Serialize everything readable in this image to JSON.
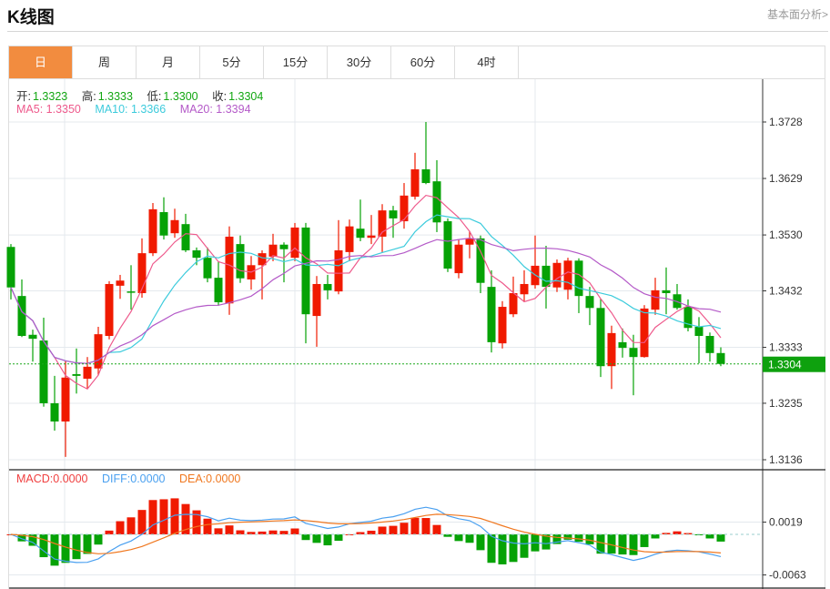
{
  "header": {
    "title": "K线图",
    "more_link": "基本面分析>"
  },
  "tabs": [
    {
      "label": "日",
      "active": true
    },
    {
      "label": "周"
    },
    {
      "label": "月"
    },
    {
      "label": "5分"
    },
    {
      "label": "15分"
    },
    {
      "label": "30分"
    },
    {
      "label": "60分"
    },
    {
      "label": "4时"
    }
  ],
  "ohlc_info": {
    "open_label": "开:",
    "open": "1.3323",
    "high_label": "高:",
    "high": "1.3333",
    "low_label": "低:",
    "low": "1.3300",
    "close_label": "收:",
    "close": "1.3304"
  },
  "ma_info": {
    "ma5": "MA5: 1.3350",
    "ma10": "MA10: 1.3366",
    "ma20": "MA20: 1.3394"
  },
  "macd_info": {
    "macd": "MACD:0.0000",
    "diff": "DIFF:0.0000",
    "dea": "DEA:0.0000"
  },
  "colors": {
    "up": "#f01a00",
    "down": "#06a206",
    "accent": "#f28c3f",
    "ma5": "#ee5a8c",
    "ma10": "#3ccbdc",
    "ma20": "#b45ac8",
    "diff": "#4aa0f0",
    "dea": "#f07820",
    "macd": "#f04040"
  },
  "chart_data": {
    "type": "candlestick",
    "title": "K线图",
    "price_axis": {
      "ylim": [
        1.3136,
        1.3728
      ],
      "ticks": [
        "1.3728",
        "1.3629",
        "1.3530",
        "1.3432",
        "1.3333",
        "1.3235",
        "1.3136"
      ]
    },
    "macd_axis": {
      "ticks": [
        "0.0019",
        "-0.0063"
      ],
      "ylim": [
        -0.0063,
        0.0019
      ]
    },
    "current_price": "1.3304",
    "candles_ohlc": [
      [
        1.3509,
        1.3514,
        1.3417,
        1.3438
      ],
      [
        1.3423,
        1.3452,
        1.3351,
        1.3353
      ],
      [
        1.3355,
        1.3364,
        1.3308,
        1.3348
      ],
      [
        1.3345,
        1.3385,
        1.3229,
        1.3235
      ],
      [
        1.3235,
        1.3283,
        1.3187,
        1.3203
      ],
      [
        1.3203,
        1.331,
        1.3141,
        1.328
      ],
      [
        1.3286,
        1.3331,
        1.3252,
        1.3283
      ],
      [
        1.3278,
        1.3316,
        1.326,
        1.3299
      ],
      [
        1.3296,
        1.3369,
        1.3284,
        1.3356
      ],
      [
        1.3353,
        1.3449,
        1.3347,
        1.3444
      ],
      [
        1.3441,
        1.346,
        1.3418,
        1.345
      ],
      [
        1.3431,
        1.3477,
        1.3399,
        1.343
      ],
      [
        1.3428,
        1.3524,
        1.342,
        1.3498
      ],
      [
        1.3498,
        1.3586,
        1.3493,
        1.3575
      ],
      [
        1.357,
        1.3596,
        1.3522,
        1.3529
      ],
      [
        1.3533,
        1.3576,
        1.3525,
        1.3556
      ],
      [
        1.3549,
        1.3567,
        1.35,
        1.3503
      ],
      [
        1.3503,
        1.3508,
        1.3477,
        1.349
      ],
      [
        1.349,
        1.3508,
        1.3447,
        1.3454
      ],
      [
        1.3455,
        1.3484,
        1.3406,
        1.3412
      ],
      [
        1.341,
        1.3545,
        1.339,
        1.3527
      ],
      [
        1.3514,
        1.3529,
        1.3446,
        1.3454
      ],
      [
        1.3452,
        1.3493,
        1.3434,
        1.3477
      ],
      [
        1.3477,
        1.3503,
        1.3417,
        1.3498
      ],
      [
        1.3492,
        1.3532,
        1.3484,
        1.3513
      ],
      [
        1.3513,
        1.3517,
        1.3447,
        1.3505
      ],
      [
        1.349,
        1.3551,
        1.3484,
        1.3543
      ],
      [
        1.3543,
        1.3551,
        1.334,
        1.3391
      ],
      [
        1.3388,
        1.3458,
        1.3334,
        1.3444
      ],
      [
        1.3444,
        1.346,
        1.3417,
        1.3433
      ],
      [
        1.3431,
        1.3556,
        1.3426,
        1.3503
      ],
      [
        1.35,
        1.3557,
        1.3484,
        1.3545
      ],
      [
        1.3541,
        1.3592,
        1.3519,
        1.3525
      ],
      [
        1.3525,
        1.3565,
        1.3514,
        1.3529
      ],
      [
        1.3527,
        1.3584,
        1.35,
        1.3573
      ],
      [
        1.3573,
        1.3581,
        1.3525,
        1.3559
      ],
      [
        1.3554,
        1.3621,
        1.3541,
        1.3599
      ],
      [
        1.3597,
        1.3674,
        1.3592,
        1.3645
      ],
      [
        1.3645,
        1.3728,
        1.3619,
        1.3621
      ],
      [
        1.3624,
        1.3661,
        1.3535,
        1.3552
      ],
      [
        1.3554,
        1.3559,
        1.3465,
        1.3471
      ],
      [
        1.3463,
        1.3522,
        1.3454,
        1.3513
      ],
      [
        1.3513,
        1.3537,
        1.3489,
        1.3524
      ],
      [
        1.3524,
        1.3529,
        1.3428,
        1.3446
      ],
      [
        1.3439,
        1.3468,
        1.3324,
        1.3342
      ],
      [
        1.334,
        1.3414,
        1.3331,
        1.3404
      ],
      [
        1.3391,
        1.3457,
        1.3386,
        1.3428
      ],
      [
        1.3426,
        1.3468,
        1.3414,
        1.3444
      ],
      [
        1.3442,
        1.3529,
        1.3436,
        1.3476
      ],
      [
        1.3476,
        1.3511,
        1.3401,
        1.3439
      ],
      [
        1.3438,
        1.3487,
        1.343,
        1.3481
      ],
      [
        1.3434,
        1.349,
        1.3417,
        1.3485
      ],
      [
        1.3485,
        1.3489,
        1.3393,
        1.3423
      ],
      [
        1.3423,
        1.3439,
        1.3372,
        1.3402
      ],
      [
        1.3402,
        1.3418,
        1.3281,
        1.33
      ],
      [
        1.33,
        1.3371,
        1.326,
        1.3358
      ],
      [
        1.3342,
        1.3366,
        1.3315,
        1.3332
      ],
      [
        1.3332,
        1.3355,
        1.3249,
        1.3316
      ],
      [
        1.3316,
        1.3407,
        1.3315,
        1.3401
      ],
      [
        1.3399,
        1.3455,
        1.339,
        1.3433
      ],
      [
        1.3433,
        1.3473,
        1.3391,
        1.3428
      ],
      [
        1.3426,
        1.3444,
        1.3399,
        1.3402
      ],
      [
        1.3404,
        1.3417,
        1.3361,
        1.3367
      ],
      [
        1.3369,
        1.3386,
        1.3305,
        1.3353
      ],
      [
        1.3353,
        1.3359,
        1.3308,
        1.3323
      ],
      [
        1.3323,
        1.3333,
        1.33,
        1.3304
      ]
    ],
    "moving_averages": [
      "MA5",
      "MA10",
      "MA20"
    ],
    "indicator": "MACD(DIFF, DEA, histogram)"
  }
}
